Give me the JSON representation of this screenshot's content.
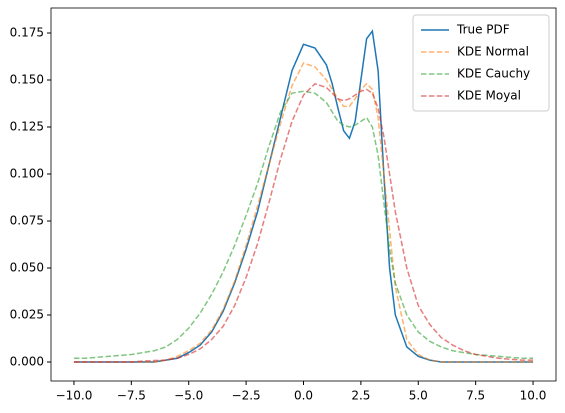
{
  "chart_data": {
    "type": "line",
    "x": [
      -10,
      -9.5,
      -9,
      -8.5,
      -8,
      -7.5,
      -7,
      -6.5,
      -6,
      -5.5,
      -5,
      -4.5,
      -4,
      -3.5,
      -3,
      -2.5,
      -2,
      -1.5,
      -1,
      -0.5,
      0,
      0.5,
      1,
      1.25,
      1.5,
      1.75,
      2,
      2.25,
      2.5,
      2.75,
      3,
      3.25,
      3.5,
      3.75,
      4,
      4.5,
      5,
      5.5,
      6,
      6.5,
      7,
      7.5,
      8,
      8.5,
      9,
      9.5,
      10
    ],
    "series": [
      {
        "name": "True PDF",
        "color": "#1f77b4",
        "linestyle": "solid",
        "alpha": 1,
        "values": [
          0,
          0,
          0,
          0,
          0,
          0,
          0,
          0,
          0.001,
          0.002,
          0.005,
          0.009,
          0.016,
          0.027,
          0.042,
          0.06,
          0.08,
          0.105,
          0.13,
          0.155,
          0.169,
          0.167,
          0.158,
          0.148,
          0.135,
          0.123,
          0.119,
          0.128,
          0.15,
          0.172,
          0.176,
          0.155,
          0.1,
          0.05,
          0.025,
          0.008,
          0.003,
          0.001,
          0,
          0,
          0,
          0,
          0,
          0,
          0,
          0,
          0
        ]
      },
      {
        "name": "KDE Normal",
        "color": "#ff7f0e",
        "linestyle": "dashed",
        "alpha": 0.6,
        "values": [
          0,
          0,
          0,
          0,
          0,
          0,
          0,
          0,
          0.001,
          0.003,
          0.006,
          0.01,
          0.017,
          0.028,
          0.043,
          0.062,
          0.083,
          0.105,
          0.127,
          0.147,
          0.159,
          0.157,
          0.15,
          0.145,
          0.14,
          0.136,
          0.136,
          0.14,
          0.145,
          0.148,
          0.145,
          0.13,
          0.1,
          0.07,
          0.04,
          0.012,
          0.004,
          0.001,
          0,
          0,
          0,
          0,
          0,
          0,
          0,
          0,
          0
        ]
      },
      {
        "name": "KDE Cauchy",
        "color": "#2ca02c",
        "linestyle": "dashed",
        "alpha": 0.6,
        "values": [
          0.002,
          0.002,
          0.0025,
          0.003,
          0.0035,
          0.004,
          0.005,
          0.006,
          0.008,
          0.012,
          0.018,
          0.026,
          0.036,
          0.048,
          0.062,
          0.078,
          0.095,
          0.115,
          0.133,
          0.143,
          0.144,
          0.143,
          0.138,
          0.133,
          0.128,
          0.126,
          0.125,
          0.126,
          0.128,
          0.13,
          0.125,
          0.11,
          0.085,
          0.06,
          0.042,
          0.025,
          0.016,
          0.011,
          0.008,
          0.006,
          0.005,
          0.004,
          0.0035,
          0.003,
          0.0025,
          0.002,
          0.002
        ]
      },
      {
        "name": "KDE Moyal",
        "color": "#d62728",
        "linestyle": "dashed",
        "alpha": 0.6,
        "values": [
          0,
          0,
          0,
          0,
          0,
          0,
          0.0005,
          0.0008,
          0.001,
          0.002,
          0.004,
          0.007,
          0.012,
          0.019,
          0.03,
          0.045,
          0.063,
          0.085,
          0.108,
          0.128,
          0.142,
          0.148,
          0.146,
          0.143,
          0.14,
          0.139,
          0.14,
          0.142,
          0.144,
          0.145,
          0.143,
          0.135,
          0.12,
          0.1,
          0.08,
          0.05,
          0.03,
          0.02,
          0.013,
          0.009,
          0.006,
          0.004,
          0.003,
          0.002,
          0.0015,
          0.001,
          0.001
        ]
      }
    ],
    "xlim": [
      -11,
      11
    ],
    "ylim": [
      -0.0101,
      0.1883
    ],
    "xticks": [
      {
        "value": -10,
        "label": "−10.0"
      },
      {
        "value": -7.5,
        "label": "−7.5"
      },
      {
        "value": -5,
        "label": "−5.0"
      },
      {
        "value": -2.5,
        "label": "−2.5"
      },
      {
        "value": 0,
        "label": "0.0"
      },
      {
        "value": 2.5,
        "label": "2.5"
      },
      {
        "value": 5,
        "label": "5.0"
      },
      {
        "value": 7.5,
        "label": "7.5"
      },
      {
        "value": 10,
        "label": "10.0"
      }
    ],
    "yticks": [
      {
        "value": 0,
        "label": "0.000"
      },
      0.025,
      {
        "value": 0.05,
        "label": "0.050"
      },
      0.075,
      {
        "value": 0.1,
        "label": "0.100"
      },
      0.125,
      {
        "value": 0.15,
        "label": "0.150"
      },
      0.175
    ],
    "grid": false,
    "legend": "upper right"
  }
}
